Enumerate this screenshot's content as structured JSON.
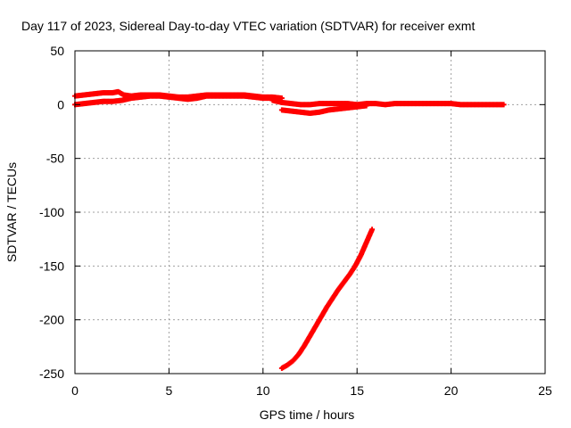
{
  "chart_data": {
    "type": "scatter",
    "title": "Day 117 of 2023, Sidereal Day-to-day VTEC variation (SDTVAR) for receiver exmt",
    "xlabel": "GPS time / hours",
    "ylabel": "SDTVAR / TECUs",
    "xlim": [
      0,
      25
    ],
    "ylim": [
      -250,
      50
    ],
    "xticks": [
      0,
      5,
      10,
      15,
      20,
      25
    ],
    "yticks": [
      -250,
      -200,
      -150,
      -100,
      -50,
      0,
      50
    ],
    "grid": true,
    "marker": "plus",
    "colors": {
      "series": "#ff0000",
      "grid": "#a0a0a0",
      "axis": "#000000"
    },
    "series": [
      {
        "name": "upper track",
        "x": [
          0.0,
          0.5,
          1.0,
          1.5,
          2.0,
          2.3,
          2.6,
          3.0,
          3.5,
          4.0,
          4.5,
          5.0,
          5.5,
          6.0,
          6.5,
          7.0,
          7.5,
          8.0,
          8.5,
          9.0,
          9.5,
          10.0,
          10.5,
          11.0
        ],
        "y": [
          8,
          9,
          10,
          11,
          11,
          12,
          9,
          8,
          9,
          9,
          9,
          8,
          7,
          7,
          8,
          9,
          9,
          9,
          9,
          9,
          8,
          7,
          7,
          6
        ]
      },
      {
        "name": "lower track",
        "x": [
          0.0,
          0.5,
          1.0,
          1.5,
          2.0,
          2.5,
          3.0,
          3.5,
          4.0,
          4.5,
          5.0,
          5.5,
          6.0,
          6.5,
          7.0,
          7.5,
          8.0,
          8.5,
          9.0,
          9.5,
          10.0,
          10.5
        ],
        "y": [
          0,
          1,
          2,
          3,
          3,
          4,
          6,
          7,
          8,
          8,
          7,
          6,
          5,
          6,
          8,
          8,
          8,
          8,
          8,
          7,
          6,
          6
        ]
      },
      {
        "name": "mid descent",
        "x": [
          11.0,
          11.5,
          12.0,
          12.5,
          13.0,
          13.5,
          14.0,
          14.5,
          15.0,
          15.5
        ],
        "y": [
          -5,
          -6,
          -7,
          -8,
          -7,
          -5,
          -4,
          -3,
          -2,
          -1
        ]
      },
      {
        "name": "flat tail",
        "x": [
          10.5,
          11.0,
          11.5,
          12.0,
          12.5,
          13.0,
          13.5,
          14.0,
          14.5,
          15.0,
          15.5,
          16.0,
          16.5,
          17.0,
          17.5,
          18.0,
          18.5,
          19.0,
          19.5,
          20.0,
          20.5,
          21.0,
          21.5,
          22.0,
          22.5,
          22.8
        ],
        "y": [
          4,
          2,
          1,
          0,
          0,
          1,
          1,
          1,
          1,
          0,
          1,
          1,
          0,
          1,
          1,
          1,
          1,
          1,
          1,
          1,
          0,
          0,
          0,
          0,
          0,
          0
        ]
      },
      {
        "name": "steep rise",
        "x": [
          11.0,
          11.3,
          11.6,
          11.9,
          12.2,
          12.5,
          12.8,
          13.1,
          13.4,
          13.7,
          14.0,
          14.3,
          14.6,
          14.9,
          15.2,
          15.5,
          15.8
        ],
        "y": [
          -245,
          -242,
          -238,
          -232,
          -224,
          -215,
          -206,
          -197,
          -188,
          -180,
          -172,
          -165,
          -158,
          -150,
          -140,
          -128,
          -116
        ]
      }
    ]
  }
}
